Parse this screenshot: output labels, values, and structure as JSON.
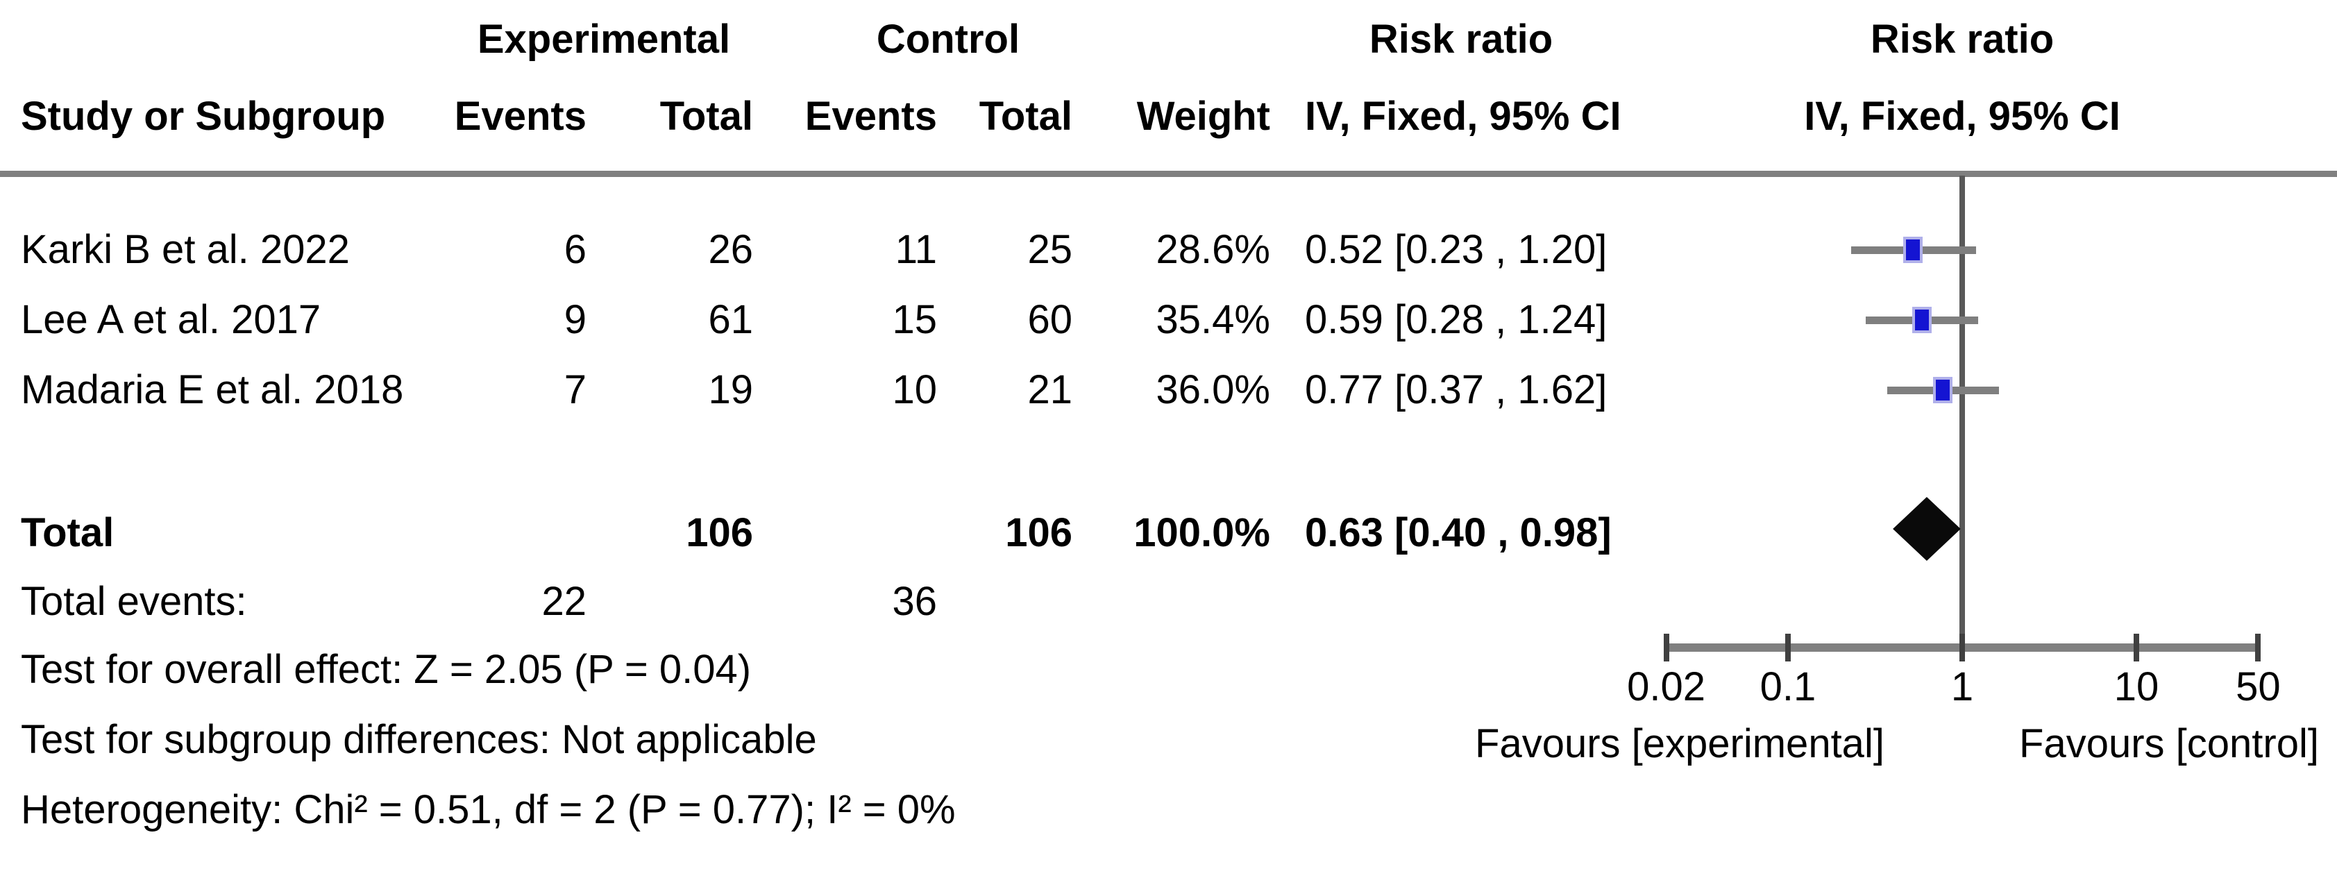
{
  "table": {
    "header": {
      "group_experimental": "Experimental",
      "group_control": "Control",
      "risk_ratio_left": "Risk ratio",
      "risk_ratio_right": "Risk ratio",
      "study": "Study or Subgroup",
      "events_exp": "Events",
      "total_exp": "Total",
      "events_ctl": "Events",
      "total_ctl": "Total",
      "weight": "Weight",
      "ci_method_left": "IV, Fixed, 95% CI",
      "ci_method_right": "IV, Fixed, 95% CI"
    },
    "rows": [
      {
        "study": "Karki B et al. 2022",
        "events_exp": "6",
        "total_exp": "26",
        "events_ctl": "11",
        "total_ctl": "25",
        "weight": "28.6%",
        "ci": "0.52 [0.23 , 1.20]"
      },
      {
        "study": "Lee A et al. 2017",
        "events_exp": "9",
        "total_exp": "61",
        "events_ctl": "15",
        "total_ctl": "60",
        "weight": "35.4%",
        "ci": "0.59 [0.28 , 1.24]"
      },
      {
        "study": "Madaria E et al. 2018",
        "events_exp": "7",
        "total_exp": "19",
        "events_ctl": "10",
        "total_ctl": "21",
        "weight": "36.0%",
        "ci": "0.77 [0.37 , 1.62]"
      }
    ],
    "total_row": {
      "label": "Total",
      "total_exp": "106",
      "total_ctl": "106",
      "weight": "100.0%",
      "ci": "0.63 [0.40 , 0.98]"
    },
    "total_events": {
      "label": "Total events:",
      "exp": "22",
      "ctl": "36"
    },
    "footer": {
      "overall_effect": "Test for overall effect: Z = 2.05 (P = 0.04)",
      "subgroup_differences": "Test for subgroup differences: Not applicable",
      "heterogeneity": "Heterogeneity: Chi² = 0.51, df = 2 (P = 0.77); I² = 0%"
    }
  },
  "chart_data": {
    "type": "scatter",
    "subtype": "forest-plot",
    "effect_measure": "Risk ratio",
    "method": "IV, Fixed, 95% CI",
    "x_scale": "log",
    "xlim": [
      0.02,
      50
    ],
    "x_ticks": [
      0.02,
      0.1,
      1,
      10,
      50
    ],
    "x_tick_labels": [
      "0.02",
      "0.1",
      "1",
      "10",
      "50"
    ],
    "reference_line": 1,
    "studies": [
      {
        "name": "Karki B et al. 2022",
        "rr": 0.52,
        "ci_low": 0.23,
        "ci_high": 1.2,
        "weight_pct": 28.6
      },
      {
        "name": "Lee A et al. 2017",
        "rr": 0.59,
        "ci_low": 0.28,
        "ci_high": 1.24,
        "weight_pct": 35.4
      },
      {
        "name": "Madaria E et al. 2018",
        "rr": 0.77,
        "ci_low": 0.37,
        "ci_high": 1.62,
        "weight_pct": 36.0
      }
    ],
    "total": {
      "rr": 0.63,
      "ci_low": 0.4,
      "ci_high": 0.98,
      "weight_pct": 100.0
    },
    "favours_left": "Favours [experimental]",
    "favours_right": "Favours [control]",
    "legend_position": "none",
    "grid": false
  },
  "colors": {
    "square_fill": "#1414d2",
    "square_fringe": "#b0b0ea",
    "diamond_fill": "#0a0a0a",
    "ci_line": "#7f7f7f",
    "axis_bar": "#808080",
    "reference_line": "#595959",
    "tick_mark": "#404040",
    "header_rule": "#808080",
    "text": "#000000"
  }
}
